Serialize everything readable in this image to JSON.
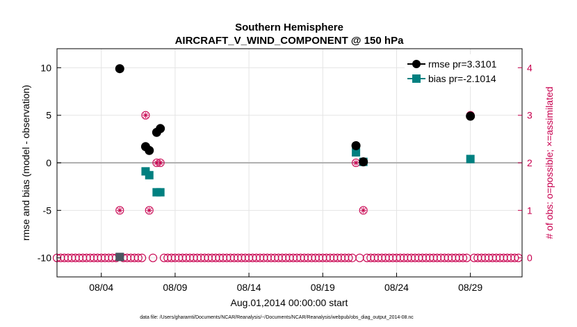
{
  "chart_data": {
    "type": "scatter",
    "title": "Southern Hemisphere",
    "subtitle": "AIRCRAFT_V_WIND_COMPONENT @ 150 hPa",
    "xlabel": "Aug.01,2014 00:00:00 start",
    "ylabel": "rmse and bias (model - observation)",
    "y2label": "# of obs: o=possible; ×=assimilated",
    "footnote": "data file: /Users/gharamti/Documents/NCAR/Reanalysis/~/Documents/NCAR/Reanalysis/webpub/obs_diag_output_2014-08.nc",
    "xlim": [
      1.0,
      32.5
    ],
    "ylim": [
      -12,
      12
    ],
    "y2lim": [
      -0.4,
      4.4
    ],
    "x_ticks": [
      4,
      9,
      14,
      19,
      24,
      29
    ],
    "x_tick_labels": [
      "08/04",
      "08/09",
      "08/14",
      "08/19",
      "08/24",
      "08/29"
    ],
    "y_ticks": [
      -10,
      -5,
      0,
      5,
      10
    ],
    "y_tick_labels": [
      "-10",
      "-5",
      "0",
      "5",
      "10"
    ],
    "y2_ticks": [
      0,
      1,
      2,
      3,
      4
    ],
    "y2_tick_labels": [
      "0",
      "1",
      "2",
      "3",
      "4"
    ],
    "colors": {
      "rmse": "#000000",
      "bias": "#008080",
      "count": "#c8004f",
      "zero_line": "#b0b0b0",
      "grid": "#e4e4e4"
    },
    "legend": [
      {
        "name": "rmse",
        "label": "rmse pr=3.3101"
      },
      {
        "name": "bias",
        "label": "bias pr=-2.1014"
      }
    ],
    "series": [
      {
        "name": "rmse",
        "marker": "circle",
        "points": [
          [
            5.25,
            9.9
          ],
          [
            7.0,
            1.7
          ],
          [
            7.25,
            1.3
          ],
          [
            7.75,
            3.2
          ],
          [
            8.0,
            3.6
          ],
          [
            21.25,
            1.8
          ],
          [
            21.75,
            0.1
          ],
          [
            29.0,
            4.9
          ]
        ]
      },
      {
        "name": "bias",
        "marker": "square",
        "points": [
          [
            5.25,
            -9.9
          ],
          [
            7.0,
            -0.9
          ],
          [
            7.25,
            -1.3
          ],
          [
            7.75,
            -3.1
          ],
          [
            8.0,
            -3.1
          ],
          [
            21.25,
            1.1
          ],
          [
            21.75,
            0.1
          ],
          [
            29.0,
            0.4
          ]
        ]
      }
    ],
    "obs_possible": {
      "nonzero": [
        [
          5.25,
          1
        ],
        [
          7.0,
          3
        ],
        [
          7.25,
          1
        ],
        [
          7.75,
          2
        ],
        [
          8.0,
          2
        ],
        [
          21.25,
          2
        ],
        [
          21.75,
          1
        ],
        [
          29.0,
          3
        ]
      ],
      "zero_start": 1.0,
      "zero_end": 32.25,
      "zero_step": 0.25
    },
    "obs_assimilated": {
      "nonzero": [
        [
          5.25,
          1
        ],
        [
          7.0,
          3
        ],
        [
          7.25,
          1
        ],
        [
          7.75,
          2
        ],
        [
          8.0,
          2
        ],
        [
          21.25,
          2
        ],
        [
          21.75,
          1
        ],
        [
          29.0,
          3
        ]
      ]
    }
  }
}
